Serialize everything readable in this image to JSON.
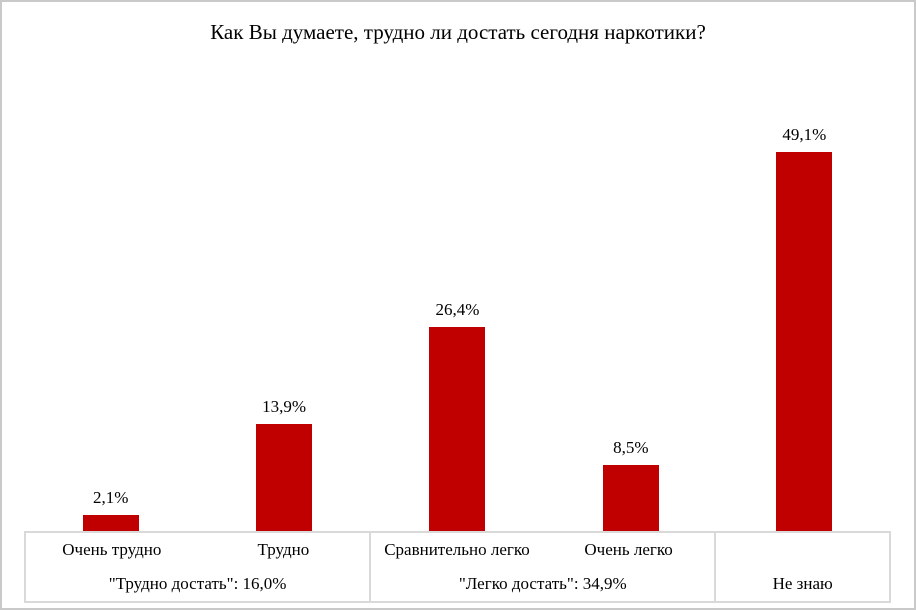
{
  "title": "Как Вы думаете, трудно ли достать сегодня наркотики?",
  "colors": {
    "bar": "#C00000",
    "grid": "#D9D9D9",
    "frame": "#C9C9C9",
    "text": "#000000"
  },
  "chart_data": {
    "type": "bar",
    "title": "Как Вы думаете, трудно ли достать сегодня наркотики?",
    "categories": [
      "Очень трудно",
      "Трудно",
      "Сравнительно легко",
      "Очень легко",
      "Не знаю"
    ],
    "values": [
      2.1,
      13.9,
      26.4,
      8.5,
      49.1
    ],
    "value_labels": [
      "2,1%",
      "13,9%",
      "26,4%",
      "8,5%",
      "49,1%"
    ],
    "groups": [
      {
        "label": "\"Трудно достать\": 16,0%",
        "span": 2,
        "total": 16.0
      },
      {
        "label": "\"Легко достать\": 34,9%",
        "span": 2,
        "total": 34.9
      },
      {
        "label": "Не знаю",
        "span": 1,
        "total": 49.1
      }
    ],
    "xlabel": "",
    "ylabel": "",
    "ylim": [
      0,
      61
    ],
    "grid": false,
    "legend": "none",
    "bar_color": "#C00000",
    "value_suffix": "%",
    "decimal_separator": ","
  }
}
